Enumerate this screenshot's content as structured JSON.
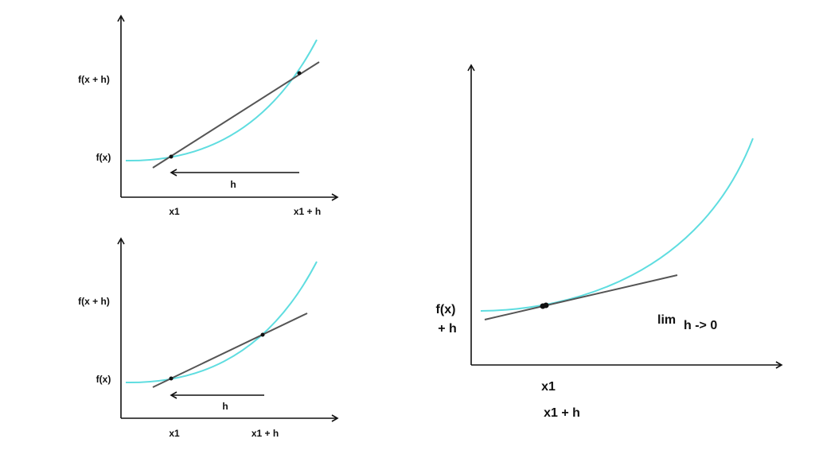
{
  "colors": {
    "curve": "#5fdde0",
    "line": "#555555",
    "axis": "#111111"
  },
  "panel_top": {
    "y_label_upper": "f(x + h)",
    "y_label_lower": "f(x)",
    "x_label_left": "x1",
    "x_label_right": "x1 + h",
    "arrow_label": "h"
  },
  "panel_bottom": {
    "y_label_upper": "f(x + h)",
    "y_label_lower": "f(x)",
    "x_label_left": "x1",
    "x_label_right": "x1 + h",
    "arrow_label": "h"
  },
  "panel_right": {
    "y_label_line1": "f(x)",
    "y_label_line2": "+ h",
    "x_label_1": "x1",
    "x_label_2": "x1 + h",
    "limit_main": "lim",
    "limit_sub": "h -> 0"
  }
}
